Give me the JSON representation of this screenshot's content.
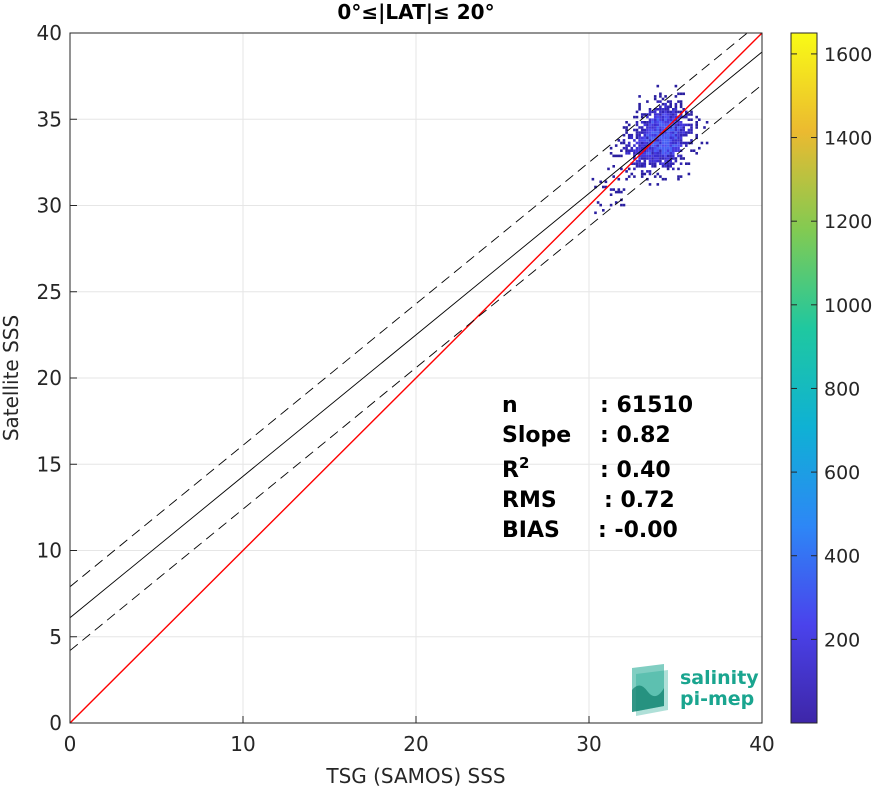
{
  "chart_data": {
    "type": "heatmap",
    "title": "0°≤|LAT|≤ 20°",
    "xlabel": "TSG (SAMOS) SSS",
    "ylabel": "Satellite SSS",
    "xlim": [
      0,
      40
    ],
    "ylim": [
      0,
      40
    ],
    "x_ticks": [
      "0",
      "10",
      "20",
      "30",
      "40"
    ],
    "y_ticks": [
      "0",
      "5",
      "10",
      "15",
      "20",
      "25",
      "30",
      "35",
      "40"
    ],
    "grid": true,
    "colorbar": {
      "range": [
        0,
        1650
      ],
      "ticks": [
        "200",
        "400",
        "600",
        "800",
        "1000",
        "1200",
        "1400",
        "1600"
      ],
      "colors": [
        "#3e26a8",
        "#4a43ec",
        "#2d87f6",
        "#0fb1d4",
        "#1fc8a0",
        "#82ca52",
        "#ebba30",
        "#f9fb15"
      ]
    },
    "lines": [
      {
        "role": "one-to-one",
        "color": "#ff0000",
        "style": "solid",
        "intercept": 0,
        "slope": 1
      },
      {
        "role": "regression",
        "color": "#000000",
        "style": "solid",
        "intercept": 6.1,
        "slope": 0.82
      },
      {
        "role": "regression-plus-2sigma",
        "color": "#000000",
        "style": "dashed",
        "intercept": 7.9,
        "slope": 0.82
      },
      {
        "role": "regression-minus-2sigma",
        "color": "#000000",
        "style": "dashed",
        "intercept": 4.2,
        "slope": 0.82
      }
    ],
    "density_clusters": [
      {
        "x": 34.3,
        "y": 34.2,
        "sx": 0.9,
        "sy": 1.0,
        "weight": 1.0
      },
      {
        "x": 33.3,
        "y": 33.0,
        "sx": 1.0,
        "sy": 0.8,
        "weight": 0.5
      },
      {
        "x": 31.2,
        "y": 30.6,
        "sx": 0.9,
        "sy": 0.7,
        "weight": 0.15
      }
    ],
    "stats": [
      {
        "label": "n",
        "sup": "",
        "value": ": 61510"
      },
      {
        "label": "Slope",
        "sup": "",
        "value": ": 0.82"
      },
      {
        "label": "R",
        "sup": "2",
        "value": ": 0.40"
      },
      {
        "label": "RMS",
        "sup": "",
        "value": ": 0.72"
      },
      {
        "label": "BIAS",
        "sup": "",
        "value": ": -0.00"
      }
    ]
  },
  "logo": {
    "line1": "salinity",
    "line2": "pi-mep",
    "color": "#1aa58f"
  }
}
